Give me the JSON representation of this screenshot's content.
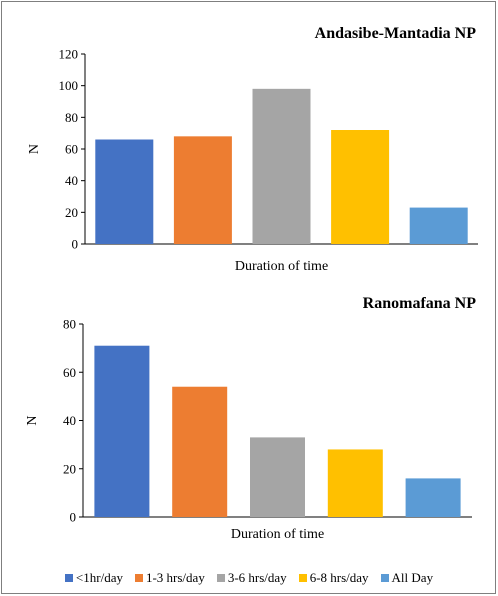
{
  "legend": [
    {
      "label": "<1hr/day",
      "color": "#4472c4"
    },
    {
      "label": "1-3 hrs/day",
      "color": "#ed7d31"
    },
    {
      "label": "3-6 hrs/day",
      "color": "#a5a5a5"
    },
    {
      "label": "6-8 hrs/day",
      "color": "#ffc000"
    },
    {
      "label": "All Day",
      "color": "#5b9bd5"
    }
  ],
  "chart_data": [
    {
      "type": "bar",
      "title": "Andasibe-Mantadia NP",
      "xlabel": "Duration of time",
      "ylabel": "N",
      "ylim": [
        0,
        120
      ],
      "yticks": [
        0,
        20,
        40,
        60,
        80,
        100,
        120
      ],
      "categories": [
        "<1hr/day",
        "1-3 hrs/day",
        "3-6 hrs/day",
        "6-8 hrs/day",
        "All Day"
      ],
      "values": [
        66,
        68,
        98,
        72,
        23
      ],
      "colors": [
        "#4472c4",
        "#ed7d31",
        "#a5a5a5",
        "#ffc000",
        "#5b9bd5"
      ],
      "grid": false
    },
    {
      "type": "bar",
      "title": "Ranomafana NP",
      "xlabel": "Duration of time",
      "ylabel": "N",
      "ylim": [
        0,
        80
      ],
      "yticks": [
        0,
        20,
        40,
        60,
        80
      ],
      "categories": [
        "<1hr/day",
        "1-3 hrs/day",
        "3-6 hrs/day",
        "6-8 hrs/day",
        "All Day"
      ],
      "values": [
        71,
        54,
        33,
        28,
        16
      ],
      "colors": [
        "#4472c4",
        "#ed7d31",
        "#a5a5a5",
        "#ffc000",
        "#5b9bd5"
      ],
      "grid": false
    }
  ]
}
